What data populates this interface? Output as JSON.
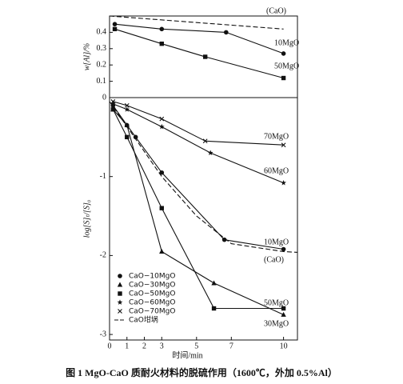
{
  "chart_data": [
    {
      "type": "line",
      "ylabel": "w[Al]/%",
      "xlim": [
        0,
        10.8
      ],
      "ylim": [
        0,
        0.5
      ],
      "yticks": [
        0.1,
        0.2,
        0.3,
        0.4
      ],
      "color": "#111",
      "series": [
        {
          "name": "(CaO)",
          "marker": null,
          "dashed": true,
          "x": [
            0,
            10
          ],
          "values": [
            0.5,
            0.42
          ]
        },
        {
          "name": "10MgO",
          "marker": "circle",
          "dashed": false,
          "x": [
            0.3,
            3,
            6.7,
            10
          ],
          "values": [
            0.45,
            0.42,
            0.4,
            0.27
          ]
        },
        {
          "name": "50MgO",
          "marker": "square",
          "dashed": false,
          "x": [
            0.3,
            3,
            5.5,
            10
          ],
          "values": [
            0.42,
            0.33,
            0.25,
            0.12
          ]
        }
      ]
    },
    {
      "type": "line",
      "ylabel": "log[S]ₜ/[S]₀",
      "xlabel": "时间/min",
      "xlim": [
        0,
        10.8
      ],
      "ylim": [
        -3.07,
        0
      ],
      "yticks": [
        0,
        -1,
        -2,
        -3
      ],
      "xticks": [
        0,
        1,
        2,
        3,
        5,
        7,
        10
      ],
      "color": "#111",
      "series": [
        {
          "name": "CaO−10MgO",
          "label": "10MgO",
          "marker": "circle",
          "dashed": false,
          "x": [
            0.2,
            1,
            1.5,
            3,
            6.6,
            10
          ],
          "values": [
            -0.1,
            -0.35,
            -0.5,
            -0.95,
            -1.8,
            -1.92
          ]
        },
        {
          "name": "CaO−30MgO",
          "label": "30MgO",
          "marker": "triangle",
          "dashed": false,
          "x": [
            0.2,
            1,
            3,
            6,
            10
          ],
          "values": [
            -0.15,
            -0.35,
            -1.95,
            -2.35,
            -2.75
          ]
        },
        {
          "name": "CaO−50MgO",
          "label": "50MgO",
          "marker": "square",
          "dashed": false,
          "x": [
            0.2,
            1,
            3,
            6,
            10
          ],
          "values": [
            -0.15,
            -0.5,
            -1.4,
            -2.67,
            -2.67
          ]
        },
        {
          "name": "CaO−60MgO",
          "label": "60MgO",
          "marker": "star",
          "dashed": false,
          "x": [
            0.2,
            1,
            3,
            5.8,
            10
          ],
          "values": [
            -0.08,
            -0.15,
            -0.37,
            -0.7,
            -1.08
          ]
        },
        {
          "name": "CaO−70MgO",
          "label": "70MgO",
          "marker": "x",
          "dashed": false,
          "x": [
            0.2,
            1,
            3,
            5.5,
            10
          ],
          "values": [
            -0.05,
            -0.1,
            -0.27,
            -0.55,
            -0.6
          ]
        },
        {
          "name": "CaO坩埚",
          "label": "(CaO)",
          "marker": null,
          "dashed": true,
          "x": [
            0,
            3,
            5,
            7,
            10,
            10.8
          ],
          "values": [
            -0.05,
            -1.0,
            -1.5,
            -1.85,
            -1.95,
            -1.96
          ]
        }
      ]
    }
  ],
  "caption": "图 1 MgO-CaO 质耐火材料的脱硫作用（1600℃，外加 0.5%Al）"
}
